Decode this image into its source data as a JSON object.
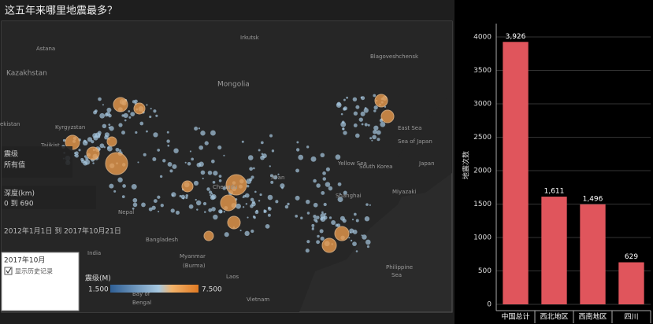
{
  "title": "这五年来哪里地震最多？",
  "map": {
    "places": [
      "Irkutsk",
      "Astana",
      "Blagoveshchensk",
      "Kazakhstan",
      "Mongolia",
      "ekistan",
      "Kyrgyzstan",
      "Tajikist",
      "Xi'an",
      "Chengdu",
      "Shanghai",
      "Yellow Sea",
      "East Sea",
      "Sea of Japan",
      "Japan",
      "South Korea",
      "Miyazaki",
      "Nepal",
      "Bangladesh",
      "India",
      "Myanmar",
      "(Burma)",
      "Laos",
      "Vietnam",
      "Philippine",
      "Sea",
      "Bay of",
      "Bengal"
    ],
    "filters": {
      "magnitude_title": "震级",
      "magnitude_value": "所有值",
      "depth_title": "深度(km)",
      "depth_value": "0 到 690",
      "date_range": "2012年1月1日 到 2017年10月21日",
      "month": "2017年10月",
      "history": "显示历史记录"
    },
    "legend": {
      "title": "震级(M)",
      "min": "1.500",
      "max": "7.500"
    }
  },
  "chart_data": {
    "type": "bar",
    "y_label": "地震次数",
    "categories": [
      "中国总计",
      "西北地区",
      "西南地区",
      "四川"
    ],
    "values": [
      3926,
      1611,
      1496,
      629
    ],
    "value_labels": [
      "3,926",
      "1,611",
      "1,496",
      "629"
    ],
    "color": "#e0555c",
    "ylim": [
      0,
      4200
    ],
    "yticks": [
      0,
      500,
      1000,
      1500,
      2000,
      2500,
      3000,
      3500,
      4000
    ],
    "grid": true
  }
}
